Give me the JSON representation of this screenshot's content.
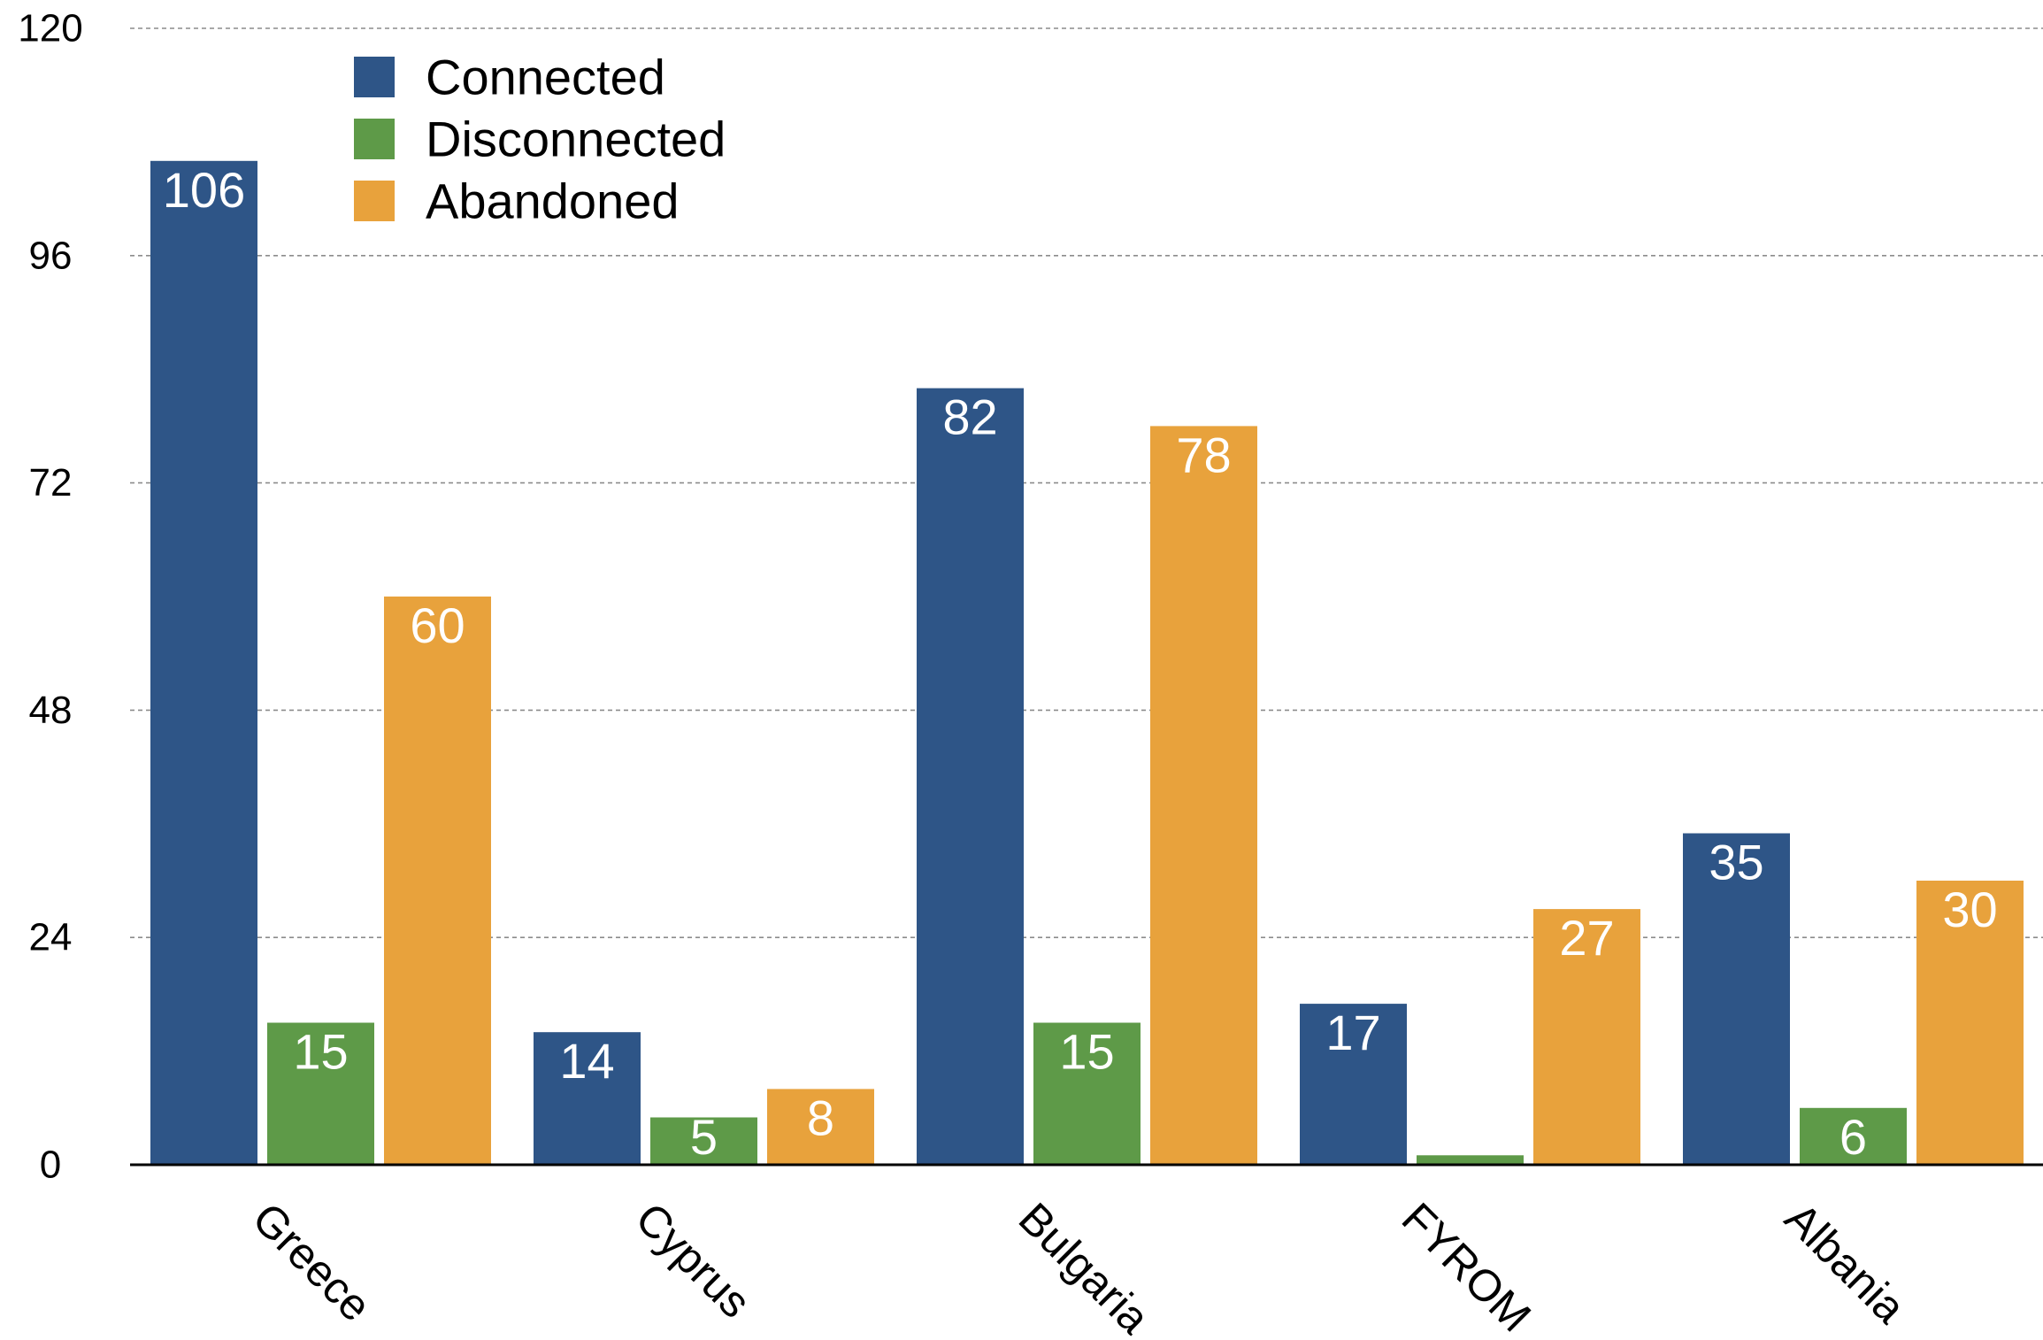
{
  "chart_data": {
    "type": "bar",
    "title": "",
    "xlabel": "",
    "ylabel": "",
    "categories": [
      "Greece",
      "Cyprus",
      "Bulgaria",
      "FYROM",
      "Albania"
    ],
    "series": [
      {
        "name": "Connected",
        "color": "#2e5587",
        "values": [
          106,
          14,
          82,
          17,
          35
        ]
      },
      {
        "name": "Disconnected",
        "color": "#5e9a48",
        "values": [
          15,
          5,
          15,
          1,
          6
        ]
      },
      {
        "name": "Abandoned",
        "color": "#e8a23c",
        "values": [
          60,
          8,
          78,
          27,
          30
        ]
      }
    ],
    "ylim": [
      0,
      120
    ],
    "yticks": [
      "0",
      "24",
      "48",
      "72",
      "96",
      "120"
    ],
    "grid": "horizontal dashed",
    "legend_position": "top-left",
    "data_labels": true,
    "category_label_rotation": "diagonal"
  }
}
